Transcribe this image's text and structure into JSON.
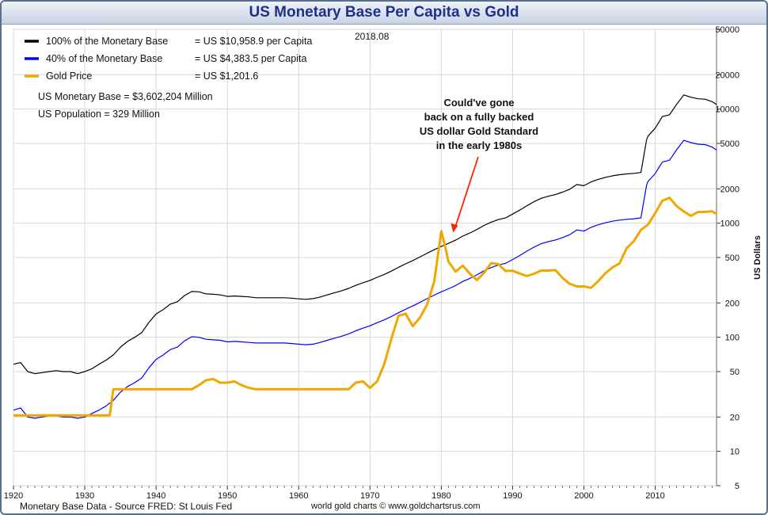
{
  "chart_data": {
    "type": "line",
    "title": "US Monetary Base Per Capita vs Gold",
    "date_stamp": "2018.08",
    "ylabel": "US Dollars",
    "yscale": "log",
    "ylim": [
      5,
      50000
    ],
    "xlim": [
      1920,
      2018.6
    ],
    "x_ticks": [
      1920,
      1930,
      1940,
      1950,
      1960,
      1970,
      1980,
      1990,
      2000,
      2010
    ],
    "y_ticks": [
      5,
      10,
      20,
      50,
      100,
      200,
      500,
      1000,
      2000,
      5000,
      10000,
      20000,
      50000
    ],
    "legend": [
      {
        "label": "100% of the Monetary Base",
        "value": "= US $10,958.9 per Capita",
        "color": "#000000"
      },
      {
        "label": "40% of the Monetary Base",
        "value": "= US $4,383.5 per Capita",
        "color": "#0000ff"
      },
      {
        "label": "Gold Price",
        "value": "= US $1,201.6",
        "color": "#f0a800"
      }
    ],
    "notes": [
      "US Monetary Base = $3,602,204 Million",
      "US Population = 329 Million"
    ],
    "annotation": {
      "lines": [
        "Could've gone",
        "back on a fully backed",
        "US dollar Gold Standard",
        "in the early 1980s"
      ],
      "points_to": [
        1981,
        800
      ]
    },
    "series": [
      {
        "name": "100% of the Monetary Base",
        "color": "#000000",
        "width": 1.2,
        "points": [
          [
            1920,
            58
          ],
          [
            1921,
            60
          ],
          [
            1922,
            50
          ],
          [
            1923,
            48
          ],
          [
            1924,
            49
          ],
          [
            1925,
            50
          ],
          [
            1926,
            51
          ],
          [
            1927,
            50
          ],
          [
            1928,
            50
          ],
          [
            1929,
            48
          ],
          [
            1930,
            50
          ],
          [
            1931,
            53
          ],
          [
            1932,
            58
          ],
          [
            1933,
            63
          ],
          [
            1934,
            70
          ],
          [
            1935,
            82
          ],
          [
            1936,
            92
          ],
          [
            1937,
            100
          ],
          [
            1938,
            110
          ],
          [
            1939,
            135
          ],
          [
            1940,
            160
          ],
          [
            1941,
            175
          ],
          [
            1942,
            195
          ],
          [
            1943,
            205
          ],
          [
            1944,
            232
          ],
          [
            1945,
            252
          ],
          [
            1946,
            250
          ],
          [
            1947,
            240
          ],
          [
            1948,
            238
          ],
          [
            1949,
            235
          ],
          [
            1950,
            228
          ],
          [
            1951,
            230
          ],
          [
            1952,
            228
          ],
          [
            1953,
            226
          ],
          [
            1954,
            222
          ],
          [
            1955,
            222
          ],
          [
            1956,
            222
          ],
          [
            1957,
            222
          ],
          [
            1958,
            222
          ],
          [
            1959,
            220
          ],
          [
            1960,
            217
          ],
          [
            1961,
            215
          ],
          [
            1962,
            218
          ],
          [
            1963,
            225
          ],
          [
            1964,
            235
          ],
          [
            1965,
            245
          ],
          [
            1966,
            255
          ],
          [
            1967,
            268
          ],
          [
            1968,
            285
          ],
          [
            1969,
            300
          ],
          [
            1970,
            315
          ],
          [
            1971,
            335
          ],
          [
            1972,
            355
          ],
          [
            1973,
            380
          ],
          [
            1974,
            410
          ],
          [
            1975,
            440
          ],
          [
            1976,
            470
          ],
          [
            1977,
            505
          ],
          [
            1978,
            545
          ],
          [
            1979,
            585
          ],
          [
            1980,
            625
          ],
          [
            1981,
            665
          ],
          [
            1982,
            710
          ],
          [
            1983,
            770
          ],
          [
            1984,
            820
          ],
          [
            1985,
            880
          ],
          [
            1986,
            955
          ],
          [
            1987,
            1020
          ],
          [
            1988,
            1075
          ],
          [
            1989,
            1110
          ],
          [
            1990,
            1200
          ],
          [
            1991,
            1300
          ],
          [
            1992,
            1420
          ],
          [
            1993,
            1540
          ],
          [
            1994,
            1650
          ],
          [
            1995,
            1720
          ],
          [
            1996,
            1780
          ],
          [
            1997,
            1870
          ],
          [
            1998,
            1980
          ],
          [
            1999,
            2180
          ],
          [
            2000,
            2130
          ],
          [
            2001,
            2300
          ],
          [
            2002,
            2420
          ],
          [
            2003,
            2520
          ],
          [
            2004,
            2600
          ],
          [
            2005,
            2660
          ],
          [
            2006,
            2700
          ],
          [
            2007,
            2730
          ],
          [
            2008,
            2780
          ],
          [
            2008.8,
            5400
          ],
          [
            2009,
            5800
          ],
          [
            2010,
            6800
          ],
          [
            2011,
            8600
          ],
          [
            2012,
            8900
          ],
          [
            2013,
            11000
          ],
          [
            2014,
            13300
          ],
          [
            2015,
            12700
          ],
          [
            2016,
            12300
          ],
          [
            2017,
            12200
          ],
          [
            2018,
            11600
          ],
          [
            2018.6,
            10960
          ]
        ]
      },
      {
        "name": "40% of the Monetary Base",
        "color": "#0000ff",
        "width": 1.2,
        "points": [
          [
            1920,
            23
          ],
          [
            1921,
            24
          ],
          [
            1922,
            20
          ],
          [
            1923,
            19.5
          ],
          [
            1924,
            20
          ],
          [
            1925,
            20.5
          ],
          [
            1926,
            20.5
          ],
          [
            1927,
            20
          ],
          [
            1928,
            20
          ],
          [
            1929,
            19.5
          ],
          [
            1930,
            20
          ],
          [
            1931,
            21.5
          ],
          [
            1932,
            23
          ],
          [
            1933,
            25
          ],
          [
            1934,
            28
          ],
          [
            1935,
            33
          ],
          [
            1936,
            37
          ],
          [
            1937,
            40
          ],
          [
            1938,
            44
          ],
          [
            1939,
            54
          ],
          [
            1940,
            64
          ],
          [
            1941,
            70
          ],
          [
            1942,
            78
          ],
          [
            1943,
            82
          ],
          [
            1944,
            93
          ],
          [
            1945,
            101
          ],
          [
            1946,
            100
          ],
          [
            1947,
            96
          ],
          [
            1948,
            95
          ],
          [
            1949,
            94
          ],
          [
            1950,
            91
          ],
          [
            1951,
            92
          ],
          [
            1952,
            91
          ],
          [
            1953,
            90
          ],
          [
            1954,
            89
          ],
          [
            1955,
            89
          ],
          [
            1956,
            89
          ],
          [
            1957,
            89
          ],
          [
            1958,
            89
          ],
          [
            1959,
            88
          ],
          [
            1960,
            87
          ],
          [
            1961,
            86
          ],
          [
            1962,
            87
          ],
          [
            1963,
            90
          ],
          [
            1964,
            94
          ],
          [
            1965,
            98
          ],
          [
            1966,
            102
          ],
          [
            1967,
            107
          ],
          [
            1968,
            114
          ],
          [
            1969,
            120
          ],
          [
            1970,
            126
          ],
          [
            1971,
            134
          ],
          [
            1972,
            142
          ],
          [
            1973,
            152
          ],
          [
            1974,
            164
          ],
          [
            1975,
            176
          ],
          [
            1976,
            188
          ],
          [
            1977,
            202
          ],
          [
            1978,
            218
          ],
          [
            1979,
            234
          ],
          [
            1980,
            250
          ],
          [
            1981,
            266
          ],
          [
            1982,
            284
          ],
          [
            1983,
            308
          ],
          [
            1984,
            328
          ],
          [
            1985,
            352
          ],
          [
            1986,
            382
          ],
          [
            1987,
            408
          ],
          [
            1988,
            430
          ],
          [
            1989,
            444
          ],
          [
            1990,
            480
          ],
          [
            1991,
            520
          ],
          [
            1992,
            568
          ],
          [
            1993,
            616
          ],
          [
            1994,
            660
          ],
          [
            1995,
            688
          ],
          [
            1996,
            712
          ],
          [
            1997,
            748
          ],
          [
            1998,
            792
          ],
          [
            1999,
            872
          ],
          [
            2000,
            852
          ],
          [
            2001,
            920
          ],
          [
            2002,
            968
          ],
          [
            2003,
            1008
          ],
          [
            2004,
            1040
          ],
          [
            2005,
            1064
          ],
          [
            2006,
            1080
          ],
          [
            2007,
            1092
          ],
          [
            2008,
            1112
          ],
          [
            2008.8,
            2160
          ],
          [
            2009,
            2320
          ],
          [
            2010,
            2720
          ],
          [
            2011,
            3440
          ],
          [
            2012,
            3560
          ],
          [
            2013,
            4400
          ],
          [
            2014,
            5320
          ],
          [
            2015,
            5080
          ],
          [
            2016,
            4920
          ],
          [
            2017,
            4880
          ],
          [
            2018,
            4640
          ],
          [
            2018.6,
            4383.5
          ]
        ]
      },
      {
        "name": "Gold Price",
        "color": "#f0a800",
        "width": 3,
        "points": [
          [
            1920,
            20.67
          ],
          [
            1933.5,
            20.67
          ],
          [
            1934,
            35
          ],
          [
            1945,
            35
          ],
          [
            1946,
            38
          ],
          [
            1947,
            42
          ],
          [
            1948,
            43
          ],
          [
            1949,
            40
          ],
          [
            1950,
            40
          ],
          [
            1951,
            41
          ],
          [
            1952,
            38
          ],
          [
            1953,
            36
          ],
          [
            1954,
            35
          ],
          [
            1967,
            35
          ],
          [
            1968,
            40
          ],
          [
            1969,
            41
          ],
          [
            1970,
            36
          ],
          [
            1971,
            41
          ],
          [
            1972,
            58
          ],
          [
            1973,
            97
          ],
          [
            1974,
            154
          ],
          [
            1975,
            161
          ],
          [
            1976,
            125
          ],
          [
            1977,
            148
          ],
          [
            1978,
            193
          ],
          [
            1979,
            307
          ],
          [
            1980,
            850
          ],
          [
            1980.6,
            600
          ],
          [
            1981,
            460
          ],
          [
            1982,
            376
          ],
          [
            1983,
            424
          ],
          [
            1984,
            361
          ],
          [
            1985,
            317
          ],
          [
            1986,
            368
          ],
          [
            1987,
            447
          ],
          [
            1988,
            437
          ],
          [
            1989,
            381
          ],
          [
            1990,
            383
          ],
          [
            1991,
            362
          ],
          [
            1992,
            344
          ],
          [
            1993,
            360
          ],
          [
            1994,
            384
          ],
          [
            1995,
            384
          ],
          [
            1996,
            388
          ],
          [
            1997,
            331
          ],
          [
            1998,
            294
          ],
          [
            1999,
            279
          ],
          [
            2000,
            279
          ],
          [
            2001,
            271
          ],
          [
            2002,
            310
          ],
          [
            2003,
            363
          ],
          [
            2004,
            409
          ],
          [
            2005,
            444
          ],
          [
            2006,
            603
          ],
          [
            2007,
            695
          ],
          [
            2008,
            872
          ],
          [
            2009,
            972
          ],
          [
            2010,
            1225
          ],
          [
            2011,
            1572
          ],
          [
            2012,
            1669
          ],
          [
            2013,
            1411
          ],
          [
            2014,
            1266
          ],
          [
            2015,
            1160
          ],
          [
            2016,
            1251
          ],
          [
            2017,
            1257
          ],
          [
            2018,
            1268
          ],
          [
            2018.6,
            1201.6
          ]
        ]
      }
    ]
  },
  "footer": {
    "left": "Monetary Base Data - Source FRED: St Louis Fed",
    "center": "world gold charts © www.goldchartsrus.com"
  }
}
